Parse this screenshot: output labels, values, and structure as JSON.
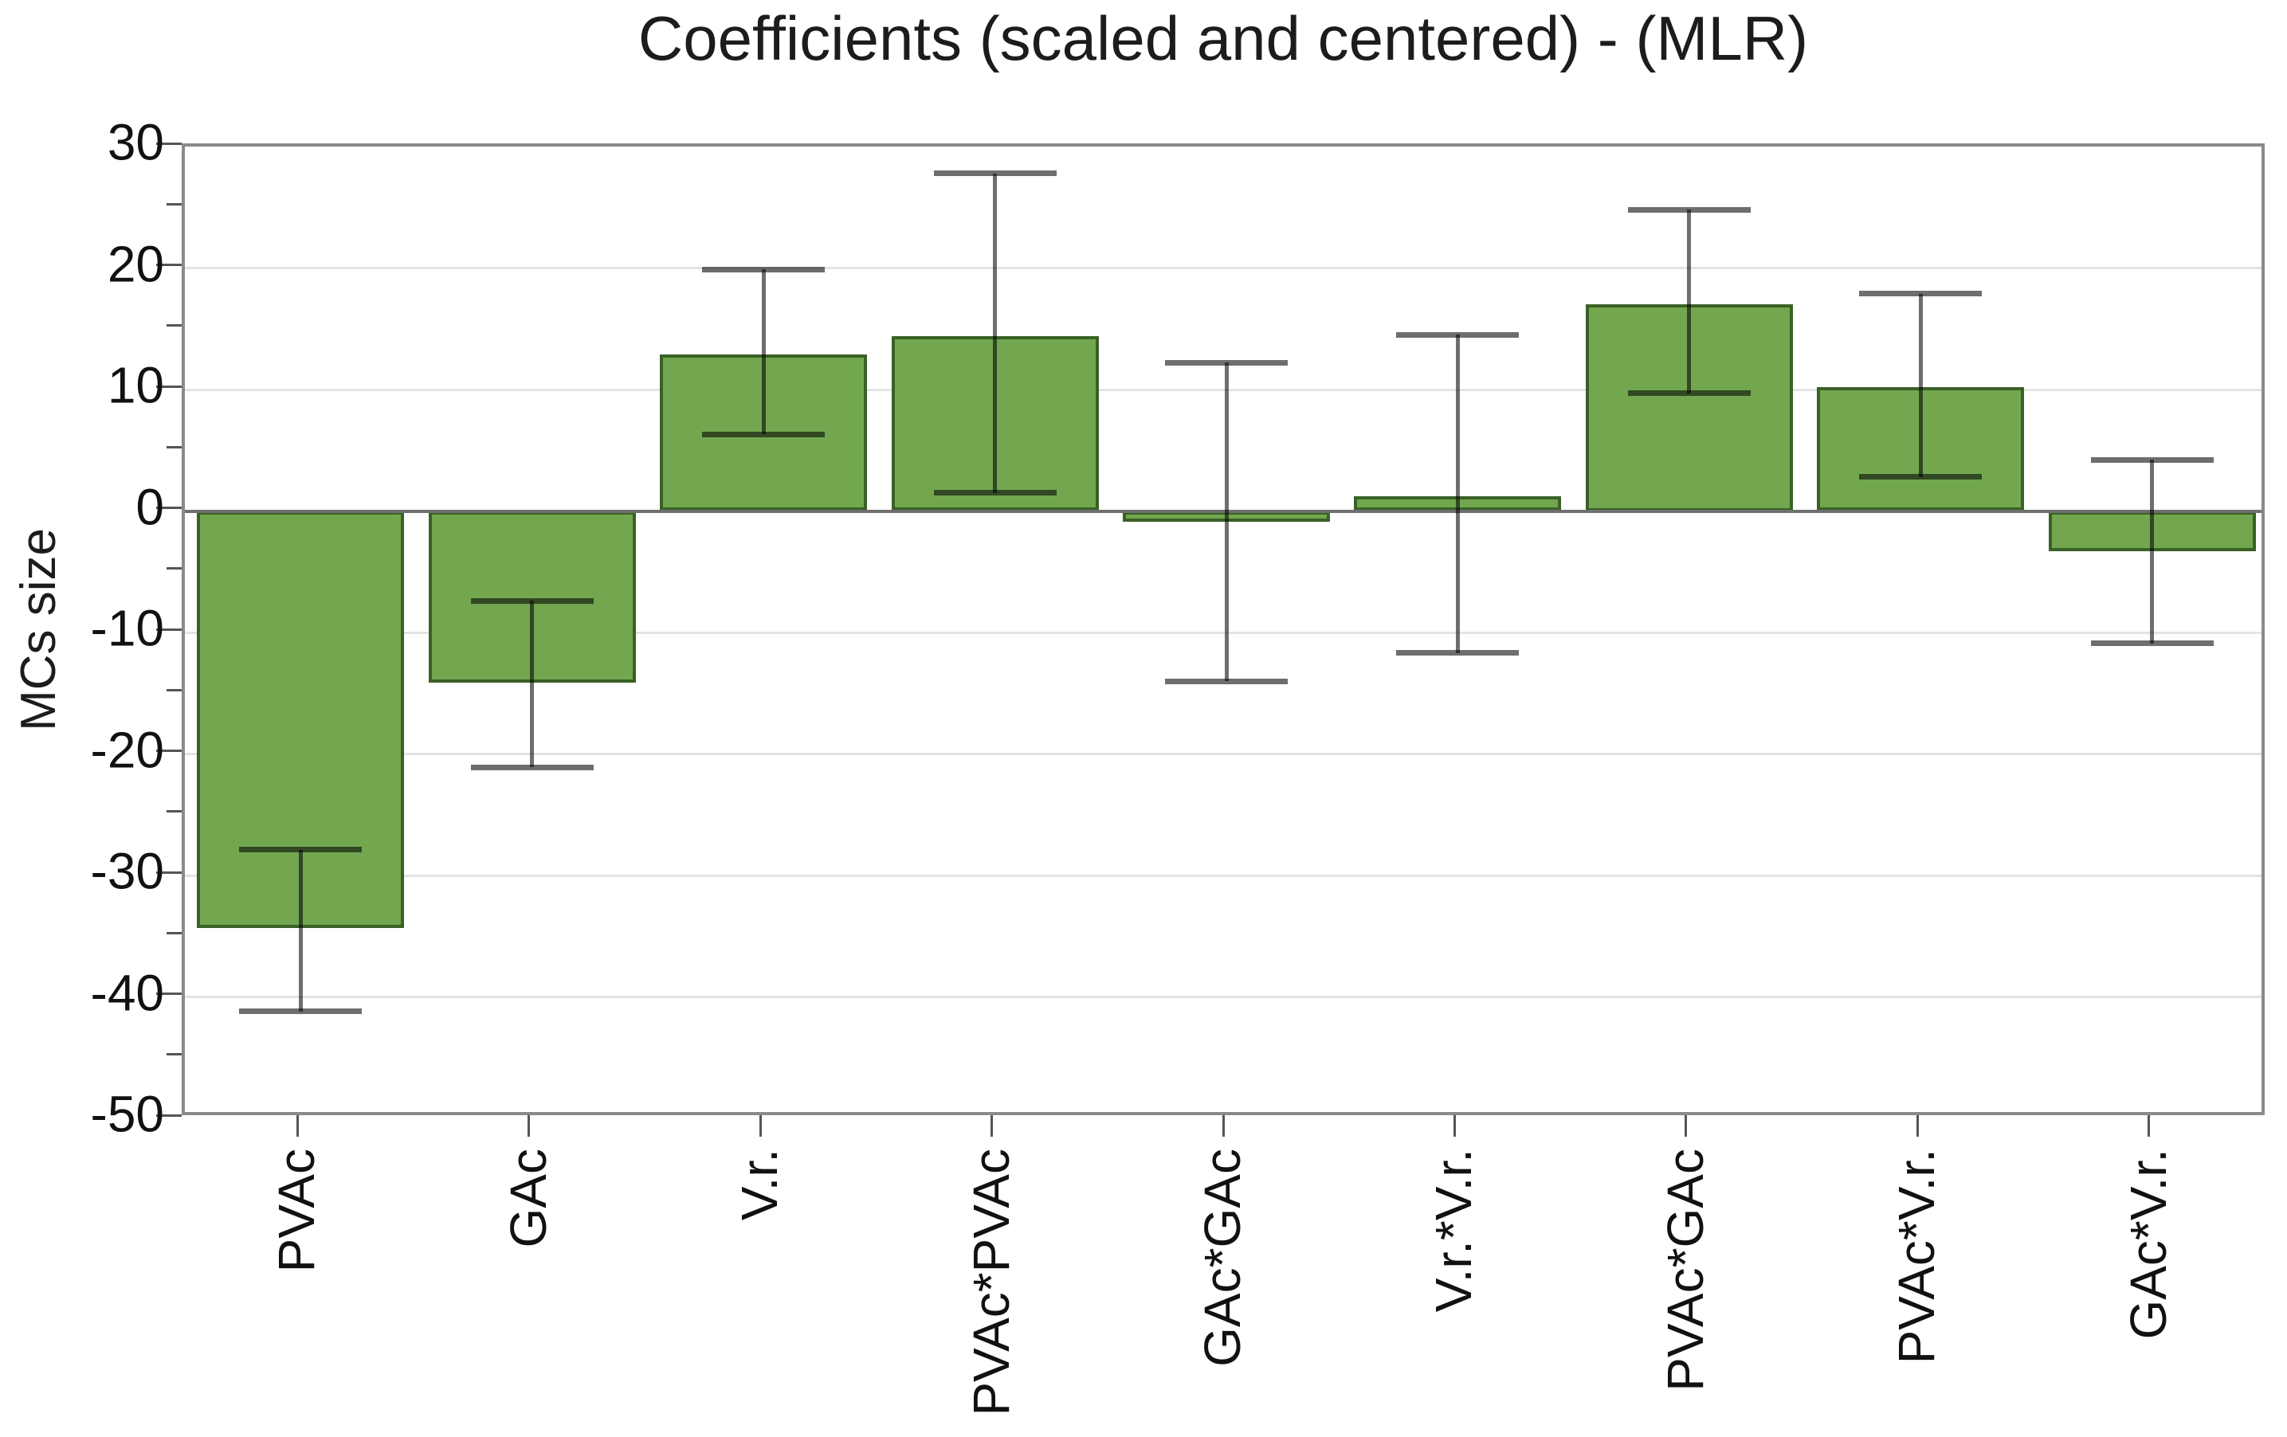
{
  "chart_data": {
    "type": "bar",
    "title": "Coefficients (scaled and centered) - (MLR)",
    "ylabel": "MCs size",
    "xlabel": "",
    "categories": [
      "PVAc",
      "GAc",
      "V.r.",
      "PVAc*PVAc",
      "GAc*GAc",
      "V.r.*V.r.",
      "PVAc*GAc",
      "PVAc*V.r.",
      "GAc*V.r."
    ],
    "values": [
      -34.3,
      -14.1,
      12.9,
      14.4,
      -0.9,
      1.2,
      17.0,
      10.2,
      -3.3
    ],
    "error_low": [
      -41.2,
      -21.1,
      6.3,
      1.5,
      -14.0,
      -11.7,
      9.7,
      2.8,
      -10.9
    ],
    "error_high": [
      -27.9,
      -7.4,
      19.9,
      27.8,
      12.2,
      14.5,
      24.8,
      17.9,
      4.2
    ],
    "ylim": [
      -50,
      30
    ],
    "ytick_step": 10,
    "yminor_tick_step": 5,
    "ytick_labels": [
      "30",
      "20",
      "10",
      "0",
      "-10",
      "-20",
      "-30",
      "-40",
      "-50"
    ],
    "grid": "horizontal-major-only",
    "legend": "none",
    "bar_color": "#72a750",
    "bar_border_color": "#3a6126",
    "error_bar_color": "#6e6e6e",
    "frame_color": "#8a8a8a",
    "zero_line_color": "#6f6f6f",
    "gridline_color": "#e3e3e3",
    "tick_color": "#555555",
    "text_color": "#1c1c1c"
  }
}
